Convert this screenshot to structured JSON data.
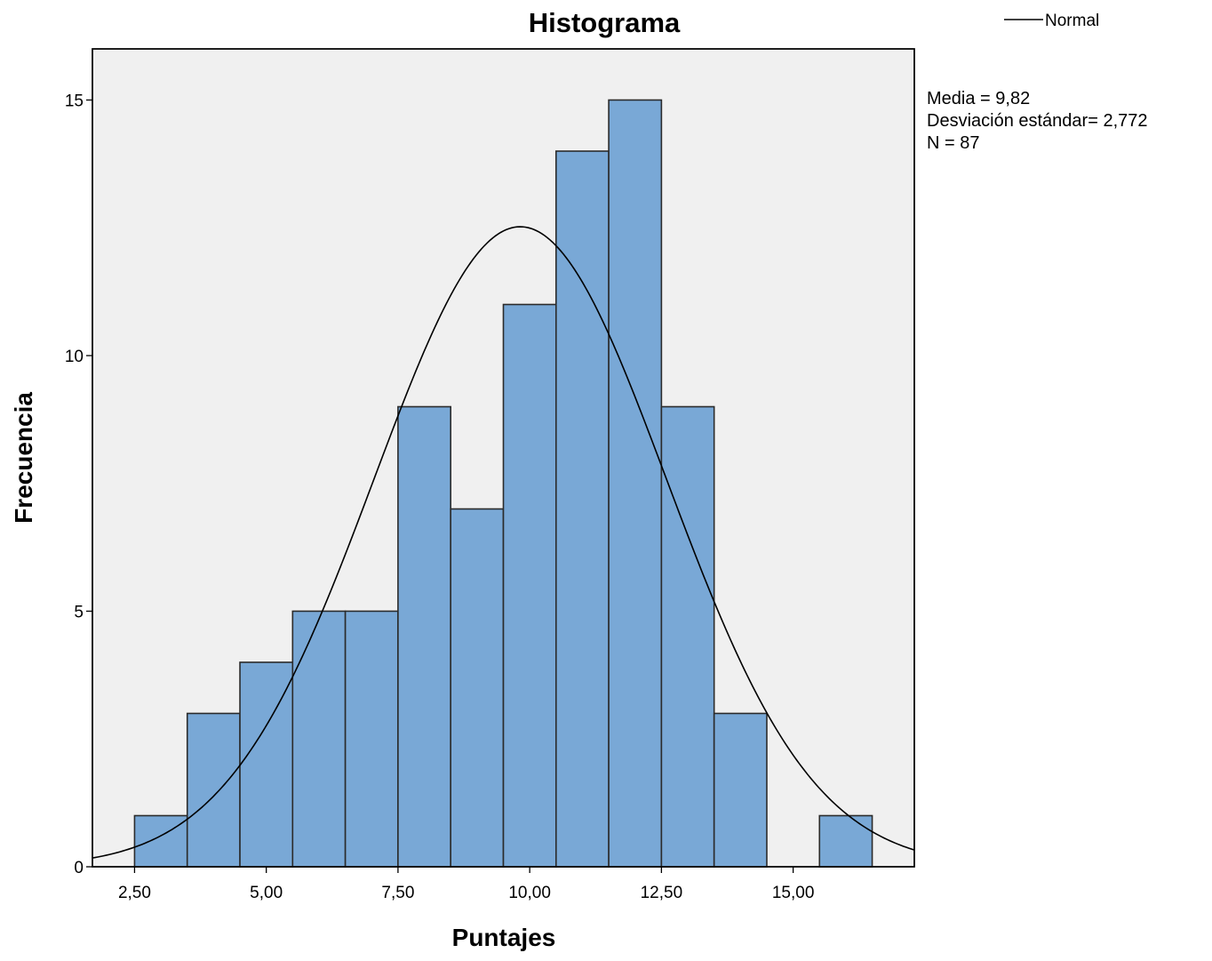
{
  "chart_data": {
    "type": "bar",
    "title": "Histograma",
    "xlabel": "Puntajes",
    "ylabel": "Frecuencia",
    "xlim": [
      1.7,
      17.3
    ],
    "ylim": [
      0,
      16
    ],
    "bin_width": 1,
    "bins": [
      {
        "start": 2.5,
        "end": 3.5,
        "value": 1
      },
      {
        "start": 3.5,
        "end": 4.5,
        "value": 3
      },
      {
        "start": 4.5,
        "end": 5.5,
        "value": 4
      },
      {
        "start": 5.5,
        "end": 6.5,
        "value": 5
      },
      {
        "start": 6.5,
        "end": 7.5,
        "value": 5
      },
      {
        "start": 7.5,
        "end": 8.5,
        "value": 9
      },
      {
        "start": 8.5,
        "end": 9.5,
        "value": 7
      },
      {
        "start": 9.5,
        "end": 10.5,
        "value": 11
      },
      {
        "start": 10.5,
        "end": 11.5,
        "value": 14
      },
      {
        "start": 11.5,
        "end": 12.5,
        "value": 15
      },
      {
        "start": 12.5,
        "end": 13.5,
        "value": 9
      },
      {
        "start": 13.5,
        "end": 14.5,
        "value": 3
      },
      {
        "start": 14.5,
        "end": 15.5,
        "value": 0
      },
      {
        "start": 15.5,
        "end": 16.5,
        "value": 1
      }
    ],
    "x_ticks": [
      {
        "value": 2.5,
        "label": "2,50"
      },
      {
        "value": 5.0,
        "label": "5,00"
      },
      {
        "value": 7.5,
        "label": "7,50"
      },
      {
        "value": 10.0,
        "label": "10,00"
      },
      {
        "value": 12.5,
        "label": "12,50"
      },
      {
        "value": 15.0,
        "label": "15,00"
      }
    ],
    "y_ticks": [
      {
        "value": 0,
        "label": "0"
      },
      {
        "value": 5,
        "label": "5"
      },
      {
        "value": 10,
        "label": "10"
      },
      {
        "value": 15,
        "label": "15"
      }
    ],
    "normal_curve": {
      "name": "Normal",
      "mean": 9.82,
      "std": 2.772,
      "n": 87
    },
    "stats": {
      "line1": "Media = 9,82",
      "line2": "Desviación estándar= 2,772",
      "line3": "N = 87"
    },
    "legend": {
      "position": "top-right",
      "entries": [
        "Normal"
      ]
    },
    "grid": false,
    "colors": {
      "bar_fill": "#79a8d6",
      "bar_stroke": "#2b2b2b",
      "plot_background": "#f0f0f0",
      "curve": "#000000"
    }
  }
}
